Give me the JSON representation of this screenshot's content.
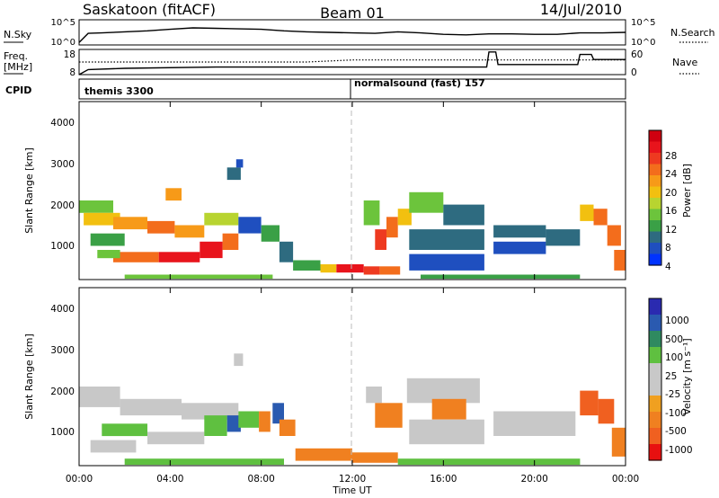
{
  "header": {
    "radar": "Saskatoon (fitACF)",
    "beam": "Beam 01",
    "date": "14/Jul/2010"
  },
  "noise_panel": {
    "left_label": "N.Sky",
    "left_ticks": [
      "10^5",
      "10^0"
    ],
    "right_ticks": [
      "10^5",
      "10^0"
    ],
    "right_label": "N.Search"
  },
  "freq_panel": {
    "left_label_1": "Freq.",
    "left_label_2": "[MHz]",
    "left_ticks": [
      "18",
      "8"
    ],
    "right_ticks": [
      "60",
      "0"
    ],
    "right_label": "Nave"
  },
  "cpid_panel": {
    "label": "CPID",
    "segments": [
      {
        "name": "themis 3300",
        "start_hour": 0
      },
      {
        "name": "normalsound (fast) 157",
        "start_hour": 12
      }
    ]
  },
  "x_axis": {
    "label": "Time UT",
    "ticks": [
      "00:00",
      "04:00",
      "08:00",
      "12:00",
      "16:00",
      "20:00",
      "00:00"
    ],
    "range_hours": [
      0,
      24
    ]
  },
  "power_panel": {
    "ylabel": "Slant Range [km]",
    "yticks": [
      "4000",
      "3000",
      "2000",
      "1000"
    ],
    "colorbar_label": "Power [dB]",
    "colorbar_ticks": [
      "28",
      "24",
      "20",
      "16",
      "12",
      "8",
      "4"
    ]
  },
  "velocity_panel": {
    "ylabel": "Slant Range [km]",
    "yticks": [
      "4000",
      "3000",
      "2000",
      "1000"
    ],
    "colorbar_label": "Velocity [m s⁻¹]",
    "colorbar_ticks": [
      "1000",
      "500",
      "100",
      "25",
      "-25",
      "-100",
      "-500",
      "-1000"
    ]
  },
  "colors": {
    "power_scale": [
      "#0033ff",
      "#1f4fbf",
      "#2e6b80",
      "#3aa046",
      "#6cc43c",
      "#b8d430",
      "#f2c010",
      "#f79a18",
      "#f36d1c",
      "#ee3a20",
      "#e8141c",
      "#d00010"
    ],
    "velocity_scale": [
      "#2a2ab0",
      "#2a5ab0",
      "#2f8a60",
      "#5fc040",
      "#c8c8c8",
      "#c8c8c8",
      "#f0a020",
      "#f08020",
      "#f06020",
      "#e81010"
    ]
  },
  "chart_data": [
    {
      "type": "line",
      "title": "Noise (N.Sky)",
      "x": [
        0,
        0.4,
        1,
        2,
        3,
        4,
        5,
        6,
        7,
        8,
        9,
        10,
        11,
        12,
        13,
        14,
        15,
        16,
        17,
        18,
        19,
        20,
        21,
        22,
        23,
        24
      ],
      "y_log10": [
        0.5,
        2.3,
        2.4,
        2.6,
        2.8,
        3.1,
        3.4,
        3.3,
        3.2,
        3.1,
        2.8,
        2.6,
        2.5,
        2.4,
        2.3,
        2.6,
        2.4,
        2.1,
        2.0,
        2.2,
        2.2,
        2.1,
        2.1,
        2.4,
        2.4,
        2.5
      ]
    },
    {
      "type": "line",
      "title": "Frequency",
      "x": [
        0,
        0.4,
        2,
        6,
        8,
        10,
        12,
        16,
        17.9,
        18,
        18.3,
        18.4,
        21.9,
        22,
        22.5,
        22.6,
        24
      ],
      "y_mhz": [
        8,
        10,
        10.5,
        11,
        11,
        11,
        11,
        11,
        11,
        17,
        17,
        12,
        12,
        16,
        16,
        14,
        14
      ],
      "nave_dotted": [
        30,
        30,
        30,
        30,
        30,
        30,
        35,
        35,
        35,
        35,
        35,
        35,
        35,
        35,
        35,
        35,
        35
      ]
    },
    {
      "type": "heatmap",
      "title": "Power [dB]",
      "xlabel": "Time UT",
      "ylabel": "Slant Range [km]",
      "xlim": [
        0,
        24
      ],
      "ylim": [
        180,
        4500
      ],
      "cells": [
        {
          "x0": 0.0,
          "x1": 1.5,
          "y0": 1800,
          "y1": 2100,
          "v": 12
        },
        {
          "x0": 0.2,
          "x1": 1.8,
          "y0": 1500,
          "y1": 1800,
          "v": 18
        },
        {
          "x0": 1.5,
          "x1": 3.0,
          "y0": 1400,
          "y1": 1700,
          "v": 20
        },
        {
          "x0": 3.0,
          "x1": 4.2,
          "y0": 1300,
          "y1": 1600,
          "v": 22
        },
        {
          "x0": 4.2,
          "x1": 5.5,
          "y0": 1200,
          "y1": 1500,
          "v": 21
        },
        {
          "x0": 5.5,
          "x1": 7.0,
          "y0": 1500,
          "y1": 1800,
          "v": 16
        },
        {
          "x0": 0.5,
          "x1": 2.0,
          "y0": 1000,
          "y1": 1300,
          "v": 10
        },
        {
          "x0": 1.5,
          "x1": 3.5,
          "y0": 600,
          "y1": 850,
          "v": 24
        },
        {
          "x0": 3.5,
          "x1": 5.3,
          "y0": 600,
          "y1": 850,
          "v": 27
        },
        {
          "x0": 5.3,
          "x1": 6.3,
          "y0": 700,
          "y1": 1100,
          "v": 29
        },
        {
          "x0": 6.3,
          "x1": 7.0,
          "y0": 900,
          "y1": 1300,
          "v": 22
        },
        {
          "x0": 0.8,
          "x1": 1.8,
          "y0": 700,
          "y1": 900,
          "v": 12
        },
        {
          "x0": 3.8,
          "x1": 4.5,
          "y0": 2100,
          "y1": 2400,
          "v": 20
        },
        {
          "x0": 6.5,
          "x1": 7.1,
          "y0": 2600,
          "y1": 2900,
          "v": 8
        },
        {
          "x0": 7.0,
          "x1": 8.0,
          "y0": 1300,
          "y1": 1700,
          "v": 6
        },
        {
          "x0": 8.0,
          "x1": 8.8,
          "y0": 1100,
          "y1": 1500,
          "v": 10
        },
        {
          "x0": 8.8,
          "x1": 9.4,
          "y0": 600,
          "y1": 1100,
          "v": 8
        },
        {
          "x0": 9.4,
          "x1": 10.6,
          "y0": 400,
          "y1": 650,
          "v": 10
        },
        {
          "x0": 10.6,
          "x1": 11.3,
          "y0": 350,
          "y1": 550,
          "v": 18
        },
        {
          "x0": 11.3,
          "x1": 12.5,
          "y0": 350,
          "y1": 550,
          "v": 27
        },
        {
          "x0": 12.5,
          "x1": 13.2,
          "y0": 300,
          "y1": 500,
          "v": 25
        },
        {
          "x0": 13.2,
          "x1": 14.1,
          "y0": 300,
          "y1": 500,
          "v": 22
        },
        {
          "x0": 12.5,
          "x1": 13.2,
          "y0": 1500,
          "y1": 2100,
          "v": 12
        },
        {
          "x0": 13.0,
          "x1": 13.5,
          "y0": 900,
          "y1": 1400,
          "v": 25
        },
        {
          "x0": 13.5,
          "x1": 14.0,
          "y0": 1200,
          "y1": 1700,
          "v": 22
        },
        {
          "x0": 14.0,
          "x1": 14.6,
          "y0": 1500,
          "y1": 1900,
          "v": 18
        },
        {
          "x0": 14.5,
          "x1": 16.0,
          "y0": 1800,
          "y1": 2300,
          "v": 13
        },
        {
          "x0": 16.0,
          "x1": 17.8,
          "y0": 1500,
          "y1": 2000,
          "v": 9
        },
        {
          "x0": 14.5,
          "x1": 17.8,
          "y0": 900,
          "y1": 1400,
          "v": 7
        },
        {
          "x0": 14.5,
          "x1": 17.8,
          "y0": 400,
          "y1": 800,
          "v": 6
        },
        {
          "x0": 18.2,
          "x1": 20.5,
          "y0": 1200,
          "y1": 1500,
          "v": 8
        },
        {
          "x0": 18.2,
          "x1": 20.5,
          "y0": 800,
          "y1": 1100,
          "v": 6
        },
        {
          "x0": 20.5,
          "x1": 22.0,
          "y0": 1000,
          "y1": 1400,
          "v": 7
        },
        {
          "x0": 22.0,
          "x1": 22.6,
          "y0": 1600,
          "y1": 2000,
          "v": 18
        },
        {
          "x0": 22.6,
          "x1": 23.2,
          "y0": 1500,
          "y1": 1900,
          "v": 22
        },
        {
          "x0": 23.2,
          "x1": 23.8,
          "y0": 1000,
          "y1": 1500,
          "v": 23
        },
        {
          "x0": 23.5,
          "x1": 24.0,
          "y0": 400,
          "y1": 900,
          "v": 24
        },
        {
          "x0": 2.0,
          "x1": 8.5,
          "y0": 200,
          "y1": 300,
          "v": 12
        },
        {
          "x0": 15.0,
          "x1": 22.0,
          "y0": 200,
          "y1": 300,
          "v": 10
        },
        {
          "x0": 6.9,
          "x1": 7.2,
          "y0": 2900,
          "y1": 3100,
          "v": 6
        }
      ]
    },
    {
      "type": "heatmap",
      "title": "Velocity [m s⁻¹]",
      "xlabel": "Time UT",
      "ylabel": "Slant Range [km]",
      "xlim": [
        0,
        24
      ],
      "ylim": [
        180,
        4500
      ],
      "cells": [
        {
          "x0": 0.0,
          "x1": 1.8,
          "y0": 1600,
          "y1": 2100,
          "v": 0
        },
        {
          "x0": 1.8,
          "x1": 4.5,
          "y0": 1400,
          "y1": 1800,
          "v": 0
        },
        {
          "x0": 4.5,
          "x1": 7.0,
          "y0": 1300,
          "y1": 1700,
          "v": 0
        },
        {
          "x0": 1.0,
          "x1": 3.0,
          "y0": 900,
          "y1": 1200,
          "v": 50
        },
        {
          "x0": 3.0,
          "x1": 5.5,
          "y0": 700,
          "y1": 1000,
          "v": 0
        },
        {
          "x0": 5.5,
          "x1": 6.5,
          "y0": 900,
          "y1": 1400,
          "v": 50
        },
        {
          "x0": 6.5,
          "x1": 7.1,
          "y0": 1000,
          "y1": 1400,
          "v": 300
        },
        {
          "x0": 0.5,
          "x1": 2.5,
          "y0": 500,
          "y1": 800,
          "v": 0
        },
        {
          "x0": 7.0,
          "x1": 7.9,
          "y0": 1100,
          "y1": 1500,
          "v": 50
        },
        {
          "x0": 7.9,
          "x1": 8.4,
          "y0": 1000,
          "y1": 1500,
          "v": -200
        },
        {
          "x0": 8.5,
          "x1": 9.0,
          "y0": 1200,
          "y1": 1700,
          "v": 400
        },
        {
          "x0": 8.8,
          "x1": 9.5,
          "y0": 900,
          "y1": 1300,
          "v": -300
        },
        {
          "x0": 9.5,
          "x1": 12.0,
          "y0": 300,
          "y1": 600,
          "v": -150
        },
        {
          "x0": 12.0,
          "x1": 14.0,
          "y0": 250,
          "y1": 500,
          "v": -150
        },
        {
          "x0": 12.6,
          "x1": 13.3,
          "y0": 1700,
          "y1": 2100,
          "v": 0
        },
        {
          "x0": 13.0,
          "x1": 14.2,
          "y0": 1100,
          "y1": 1700,
          "v": -200
        },
        {
          "x0": 14.4,
          "x1": 17.6,
          "y0": 1700,
          "y1": 2300,
          "v": 0
        },
        {
          "x0": 15.5,
          "x1": 17.0,
          "y0": 1300,
          "y1": 1800,
          "v": -150
        },
        {
          "x0": 14.5,
          "x1": 17.8,
          "y0": 700,
          "y1": 1300,
          "v": 0
        },
        {
          "x0": 18.2,
          "x1": 21.8,
          "y0": 900,
          "y1": 1500,
          "v": 0
        },
        {
          "x0": 22.0,
          "x1": 22.8,
          "y0": 1400,
          "y1": 2000,
          "v": -700
        },
        {
          "x0": 22.8,
          "x1": 23.5,
          "y0": 1200,
          "y1": 1800,
          "v": -600
        },
        {
          "x0": 23.4,
          "x1": 24.0,
          "y0": 400,
          "y1": 1100,
          "v": -300
        },
        {
          "x0": 2.0,
          "x1": 9.0,
          "y0": 200,
          "y1": 350,
          "v": 50
        },
        {
          "x0": 14.0,
          "x1": 22.0,
          "y0": 200,
          "y1": 350,
          "v": 50
        },
        {
          "x0": 6.8,
          "x1": 7.2,
          "y0": 2600,
          "y1": 2900,
          "v": 0
        }
      ]
    }
  ]
}
